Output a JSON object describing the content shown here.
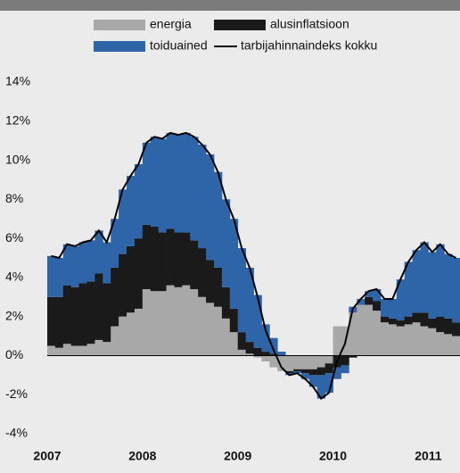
{
  "chart_data": {
    "type": "bar",
    "stacked": true,
    "categories": [
      "2007",
      null,
      null,
      null,
      null,
      null,
      null,
      null,
      null,
      null,
      null,
      null,
      "2008",
      null,
      null,
      null,
      null,
      null,
      null,
      null,
      null,
      null,
      null,
      null,
      "2009",
      null,
      null,
      null,
      null,
      null,
      null,
      null,
      null,
      null,
      null,
      null,
      "2010",
      null,
      null,
      null,
      null,
      null,
      null,
      null,
      null,
      null,
      null,
      null,
      "2011",
      null,
      null,
      null
    ],
    "series": [
      {
        "name": "energia",
        "color": "#a8a8a8",
        "values": [
          0.5,
          0.4,
          0.6,
          0.5,
          0.5,
          0.6,
          0.8,
          0.7,
          1.5,
          2.0,
          2.2,
          2.4,
          3.4,
          3.3,
          3.3,
          3.6,
          3.5,
          3.6,
          3.4,
          3.0,
          2.7,
          2.5,
          1.9,
          1.2,
          0.3,
          0.1,
          -0.1,
          -0.3,
          -0.6,
          -0.8,
          -0.8,
          -0.7,
          -0.7,
          -0.7,
          -0.6,
          -0.4,
          1.5,
          1.5,
          2.2,
          2.6,
          2.6,
          2.3,
          1.7,
          1.6,
          1.5,
          1.6,
          1.7,
          1.5,
          1.4,
          1.2,
          1.1,
          1.0
        ]
      },
      {
        "name": "alusinflatsioon",
        "color": "#1a1a1a",
        "values": [
          2.5,
          2.6,
          3.0,
          3.0,
          3.2,
          3.2,
          3.4,
          3.0,
          3.0,
          3.2,
          3.4,
          3.6,
          3.3,
          3.3,
          3.0,
          2.9,
          2.8,
          2.7,
          2.5,
          2.5,
          2.2,
          2.0,
          1.6,
          1.2,
          0.9,
          0.6,
          0.4,
          0.2,
          0.1,
          0.0,
          -0.1,
          -0.1,
          -0.2,
          -0.3,
          -0.4,
          -0.5,
          -0.6,
          -0.5,
          -0.1,
          0.0,
          0.4,
          0.5,
          0.3,
          0.3,
          0.3,
          0.4,
          0.5,
          0.7,
          0.5,
          0.8,
          0.8,
          0.7
        ]
      },
      {
        "name": "toiduained",
        "color": "#2e64a8",
        "values": [
          2.1,
          2.0,
          2.1,
          2.1,
          2.1,
          2.1,
          2.2,
          2.1,
          2.5,
          3.3,
          3.6,
          3.8,
          4.2,
          4.6,
          4.8,
          4.9,
          5.0,
          5.1,
          5.3,
          5.3,
          5.4,
          4.9,
          4.5,
          4.6,
          4.3,
          3.8,
          2.7,
          1.4,
          0.8,
          0.2,
          -0.1,
          -0.1,
          -0.3,
          -0.6,
          -1.2,
          -1.0,
          -0.6,
          -0.4,
          0.3,
          0.3,
          0.3,
          0.6,
          0.9,
          1.0,
          2.1,
          2.8,
          3.2,
          3.6,
          3.4,
          3.7,
          3.3,
          3.3
        ]
      },
      {
        "name": "tarbijahinnaindeks kokku",
        "color": "#000000",
        "type": "line",
        "values": [
          5.1,
          5.0,
          5.7,
          5.6,
          5.8,
          5.9,
          6.4,
          5.8,
          7.0,
          8.5,
          9.2,
          9.8,
          10.9,
          11.2,
          11.1,
          11.4,
          11.3,
          11.4,
          11.2,
          10.8,
          10.3,
          9.4,
          8.0,
          7.0,
          5.5,
          4.5,
          3.0,
          1.3,
          0.3,
          -0.6,
          -1.0,
          -0.9,
          -1.2,
          -1.6,
          -2.2,
          -1.9,
          -0.3,
          0.6,
          2.4,
          2.9,
          3.3,
          3.4,
          2.9,
          2.9,
          3.9,
          4.8,
          5.4,
          5.8,
          5.3,
          5.7,
          5.2,
          5.0
        ]
      }
    ],
    "ylim": [
      -4,
      14
    ],
    "yticks": [
      {
        "value": -4,
        "label": "-4%"
      },
      {
        "value": -2,
        "label": "-2%"
      },
      {
        "value": 0,
        "label": "0%"
      },
      {
        "value": 2,
        "label": "2%"
      },
      {
        "value": 4,
        "label": "4%"
      },
      {
        "value": 6,
        "label": "6%"
      },
      {
        "value": 8,
        "label": "8%"
      },
      {
        "value": 10,
        "label": "10%"
      },
      {
        "value": 12,
        "label": "12%"
      },
      {
        "value": 14,
        "label": "14%"
      }
    ]
  }
}
